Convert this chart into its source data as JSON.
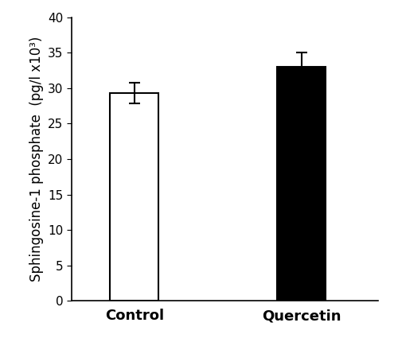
{
  "categories": [
    "Control",
    "Quercetin"
  ],
  "values": [
    29.3,
    33.0
  ],
  "errors": [
    1.5,
    2.0
  ],
  "bar_colors": [
    "#ffffff",
    "#000000"
  ],
  "bar_edgecolors": [
    "#000000",
    "#000000"
  ],
  "ylabel": "Sphingosine-1 phosphate  (pg/l x10³)",
  "ylim": [
    0,
    40
  ],
  "yticks": [
    0,
    5,
    10,
    15,
    20,
    25,
    30,
    35,
    40
  ],
  "bar_width": 0.35,
  "x_positions": [
    1.0,
    2.2
  ],
  "xlim": [
    0.55,
    2.75
  ],
  "figsize": [
    5.0,
    4.3
  ],
  "dpi": 100,
  "tick_fontsize": 11,
  "label_fontsize": 12,
  "xlabel_fontsize": 13,
  "error_capsize": 5,
  "error_linewidth": 1.5
}
